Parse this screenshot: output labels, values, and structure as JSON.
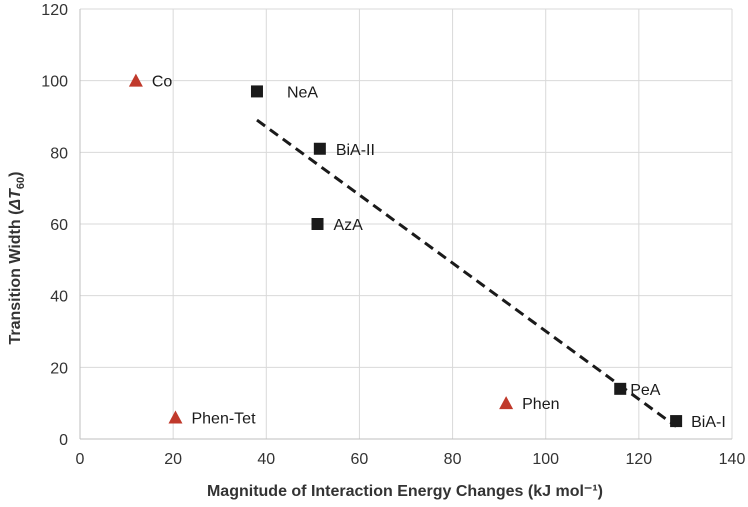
{
  "chart_data": {
    "type": "scatter",
    "title": "",
    "xlabel": "Magnitude of Interaction Energy Changes  (kJ mol⁻¹)",
    "ylabel": {
      "prefix": "Transition Width (",
      "symbol": "ΔT",
      "subscript": "60",
      "suffix": ")"
    },
    "xlim": [
      0,
      140
    ],
    "ylim": [
      0,
      120
    ],
    "xticks": [
      0,
      20,
      40,
      60,
      80,
      100,
      120,
      140
    ],
    "yticks": [
      0,
      20,
      40,
      60,
      80,
      100,
      120
    ],
    "grid": true,
    "series": [
      {
        "marker": "square",
        "color": "#1a1a1a",
        "points": [
          {
            "label": "NeA",
            "x": 38,
            "y": 97
          },
          {
            "label": "BiA-II",
            "x": 51.5,
            "y": 81
          },
          {
            "label": "AzA",
            "x": 51,
            "y": 60
          },
          {
            "label": "PeA",
            "x": 116,
            "y": 14
          },
          {
            "label": "BiA-I",
            "x": 128,
            "y": 5
          }
        ]
      },
      {
        "marker": "triangle",
        "color": "#c0392b",
        "points": [
          {
            "label": "Co",
            "x": 12,
            "y": 100
          },
          {
            "label": "Phen-Tet",
            "x": 20.5,
            "y": 6
          },
          {
            "label": "Phen",
            "x": 91.5,
            "y": 10
          }
        ]
      }
    ],
    "trendline": {
      "style": "dashed",
      "color": "#1a1a1a",
      "x": [
        38,
        128
      ],
      "y": [
        89,
        3.5
      ]
    }
  }
}
